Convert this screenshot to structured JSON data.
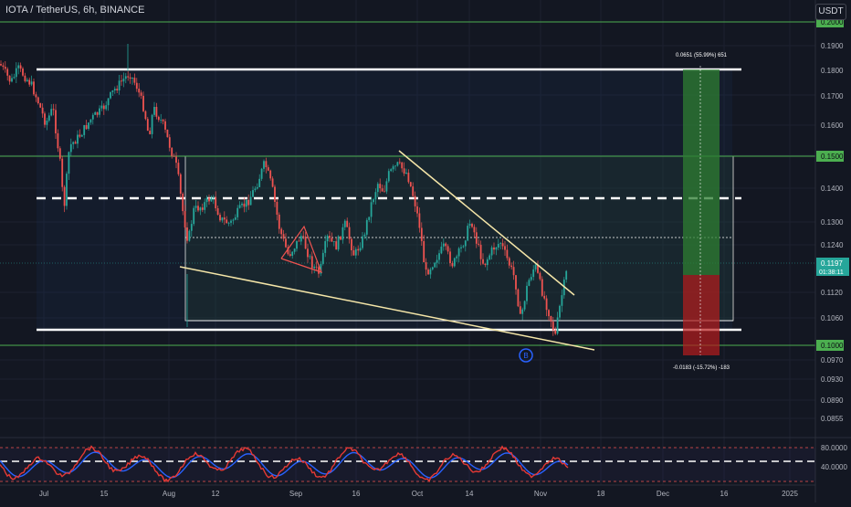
{
  "chart": {
    "title": "IOTA / TetherUS, 6h, BINANCE",
    "currency": "USDT",
    "last_price": "0.1197",
    "countdown": "01:38:11"
  },
  "price_axis": {
    "ticks": [
      "0.2000",
      "0.1900",
      "0.1800",
      "0.1700",
      "0.1600",
      "0.1500",
      "0.1400",
      "0.1300",
      "0.1240",
      "0.1120",
      "0.1060",
      "0.1000",
      "0.0970",
      "0.0930",
      "0.0890",
      "0.0855"
    ],
    "highlighted": [
      "0.2000",
      "0.1502",
      "0.1002"
    ]
  },
  "oscillator_axis": {
    "ticks": [
      "80.0000",
      "40.0000"
    ]
  },
  "time_axis": {
    "labels": [
      "Jul",
      "15",
      "Aug",
      "12",
      "Sep",
      "16",
      "Oct",
      "14",
      "Nov",
      "18",
      "Dec",
      "16",
      "2025"
    ]
  },
  "position_tool": {
    "target_label": "0.0651 (55.99%) 651",
    "stop_label": "-0.0183 (-15.72%) -183"
  },
  "colors": {
    "background": "#131722",
    "up_candle": "#26a69a",
    "down_candle": "#ef5350",
    "trendline": "#f5e6a8",
    "level_line": "#ffffff",
    "green_level": "#4caf50",
    "target_zone": "#2e7d32",
    "stop_zone": "#b71c1c",
    "rsi_line": "#2962ff",
    "rsi_signal": "#e53935"
  }
}
